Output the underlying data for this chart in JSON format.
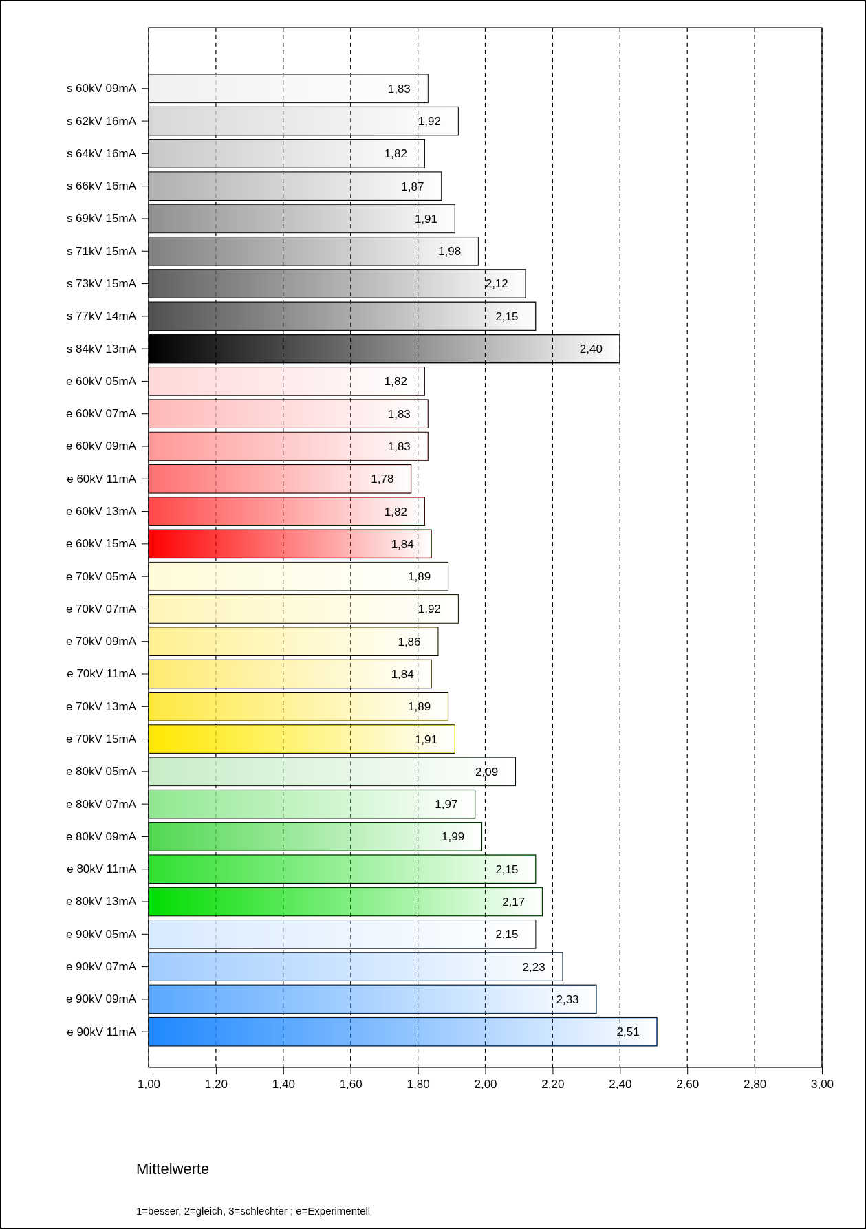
{
  "chart_data": {
    "type": "bar",
    "orientation": "horizontal",
    "title": "Mittelwerte",
    "annotations": [
      "1=besser, 2=gleich, 3=schlechter ; e=Experimentell"
    ],
    "categories": [
      "s 60kV 09mA",
      "s 62kV 16mA",
      "s 64kV 16mA",
      "s 66kV 16mA",
      "s 69kV 15mA",
      "s 71kV 15mA",
      "s 73kV 15mA",
      "s 77kV 14mA",
      "s 84kV 13mA",
      "e 60kV 05mA",
      "e 60kV 07mA",
      "e 60kV 09mA",
      "e 60kV 11mA",
      "e 60kV 13mA",
      "e 60kV 15mA",
      "e 70kV 05mA",
      "e 70kV 07mA",
      "e 70kV 09mA",
      "e 70kV 11mA",
      "e 70kV 13mA",
      "e 70kV 15mA",
      "e 80kV 05mA",
      "e 80kV 07mA",
      "e 80kV 09mA",
      "e 80kV 11mA",
      "e 80kV 13mA",
      "e 90kV 05mA",
      "e 90kV 07mA",
      "e 90kV 09mA",
      "e 90kV 11mA"
    ],
    "values": [
      1.83,
      1.92,
      1.82,
      1.87,
      1.91,
      1.98,
      2.12,
      2.15,
      2.4,
      1.82,
      1.83,
      1.83,
      1.78,
      1.82,
      1.84,
      1.89,
      1.92,
      1.86,
      1.84,
      1.89,
      1.91,
      2.09,
      1.97,
      1.99,
      2.15,
      2.17,
      2.15,
      2.23,
      2.33,
      2.51
    ],
    "value_labels": [
      "1,83",
      "1,92",
      "1,82",
      "1,87",
      "1,91",
      "1,98",
      "2,12",
      "2,15",
      "2,40",
      "1,82",
      "1,83",
      "1,83",
      "1,78",
      "1,82",
      "1,84",
      "1,89",
      "1,92",
      "1,86",
      "1,84",
      "1,89",
      "1,91",
      "2,09",
      "1,97",
      "1,99",
      "2,15",
      "2,17",
      "2,15",
      "2,23",
      "2,33",
      "2,51"
    ],
    "colors": [
      "#f0f0f0",
      "#d8d8d8",
      "#c8c8c8",
      "#b0b0b0",
      "#909090",
      "#808080",
      "#606060",
      "#505050",
      "#000000",
      "#ffd8d8",
      "#ffb8b8",
      "#ff9898",
      "#ff7070",
      "#ff4848",
      "#ff0000",
      "#fffbd8",
      "#fff5b8",
      "#fff090",
      "#ffeb70",
      "#ffe840",
      "#ffe800",
      "#c8ecc8",
      "#90e890",
      "#50d850",
      "#30e030",
      "#00dd00",
      "#d8eaff",
      "#a0ccff",
      "#5aa8ff",
      "#1e88ff"
    ],
    "xlim": [
      1,
      3
    ],
    "xticks": [
      {
        "value": 1,
        "label": "1,00"
      },
      {
        "value": 1.2,
        "label": "1,20"
      },
      {
        "value": 1.4,
        "label": "1,40"
      },
      {
        "value": 1.6,
        "label": "1,60"
      },
      {
        "value": 1.8,
        "label": "1,80"
      },
      {
        "value": 2,
        "label": "2,00"
      },
      {
        "value": 2.2,
        "label": "2,20"
      },
      {
        "value": 2.4,
        "label": "2,40"
      },
      {
        "value": 2.6,
        "label": "2,60"
      },
      {
        "value": 2.8,
        "label": "2,80"
      },
      {
        "value": 3,
        "label": "3,00"
      }
    ],
    "grid": "x"
  }
}
